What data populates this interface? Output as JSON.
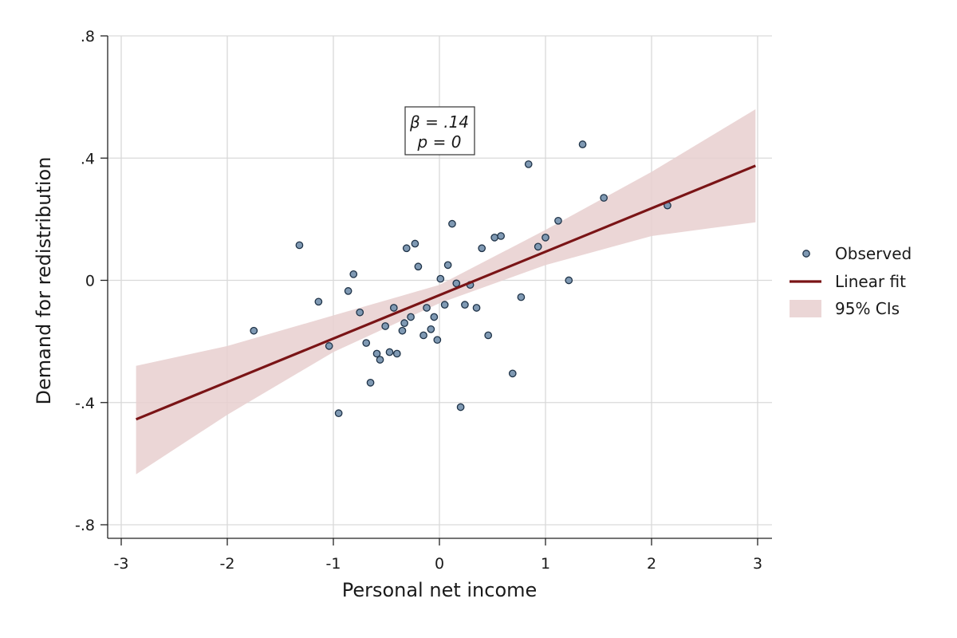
{
  "chart_data": {
    "type": "scatter",
    "title": "",
    "xlabel": "Personal net income",
    "ylabel": "Demand for redistribution",
    "xlim": [
      -3,
      3
    ],
    "ylim": [
      -0.8,
      0.8
    ],
    "xticks": [
      -3,
      -2,
      -1,
      0,
      1,
      2,
      3
    ],
    "xtick_labels": [
      "-3",
      "-2",
      "-1",
      "0",
      "1",
      "2",
      "3"
    ],
    "yticks": [
      -0.8,
      -0.4,
      0,
      0.4,
      0.8
    ],
    "ytick_labels": [
      "-.8",
      "-.4",
      "0",
      ".4",
      ".8"
    ],
    "grid": true,
    "legend_position": "right",
    "annotation": {
      "line1": "β = .14",
      "line2": "p = 0"
    },
    "series": [
      {
        "name": "Observed",
        "kind": "scatter",
        "color": "#7f99b3",
        "edge_color": "#1f3348",
        "points": [
          [
            -1.75,
            -0.165
          ],
          [
            -1.32,
            0.115
          ],
          [
            -1.14,
            -0.07
          ],
          [
            -1.04,
            -0.215
          ],
          [
            -0.95,
            -0.435
          ],
          [
            -0.86,
            -0.035
          ],
          [
            -0.81,
            0.02
          ],
          [
            -0.75,
            -0.105
          ],
          [
            -0.69,
            -0.205
          ],
          [
            -0.65,
            -0.335
          ],
          [
            -0.59,
            -0.24
          ],
          [
            -0.56,
            -0.26
          ],
          [
            -0.51,
            -0.15
          ],
          [
            -0.47,
            -0.235
          ],
          [
            -0.43,
            -0.09
          ],
          [
            -0.4,
            -0.24
          ],
          [
            -0.35,
            -0.165
          ],
          [
            -0.33,
            -0.14
          ],
          [
            -0.31,
            0.105
          ],
          [
            -0.27,
            -0.12
          ],
          [
            -0.23,
            0.12
          ],
          [
            -0.2,
            0.045
          ],
          [
            -0.15,
            -0.18
          ],
          [
            -0.12,
            -0.09
          ],
          [
            -0.08,
            -0.16
          ],
          [
            -0.05,
            -0.12
          ],
          [
            -0.02,
            -0.195
          ],
          [
            0.01,
            0.005
          ],
          [
            0.05,
            -0.08
          ],
          [
            0.08,
            0.05
          ],
          [
            0.12,
            0.185
          ],
          [
            0.16,
            -0.01
          ],
          [
            0.2,
            -0.415
          ],
          [
            0.24,
            -0.08
          ],
          [
            0.29,
            -0.015
          ],
          [
            0.35,
            -0.09
          ],
          [
            0.4,
            0.105
          ],
          [
            0.46,
            -0.18
          ],
          [
            0.52,
            0.14
          ],
          [
            0.58,
            0.145
          ],
          [
            0.69,
            -0.305
          ],
          [
            0.77,
            -0.055
          ],
          [
            0.84,
            0.38
          ],
          [
            0.93,
            0.11
          ],
          [
            1.0,
            0.14
          ],
          [
            1.12,
            0.195
          ],
          [
            1.22,
            0.0
          ],
          [
            1.35,
            0.445
          ],
          [
            1.55,
            0.27
          ],
          [
            2.15,
            0.245
          ]
        ]
      },
      {
        "name": "Linear fit",
        "kind": "line",
        "color": "#7a1416",
        "points": [
          [
            -2.86,
            -0.455
          ],
          [
            2.98,
            0.375
          ]
        ]
      },
      {
        "name": "95% CIs",
        "kind": "band",
        "color": "#e7cfcf",
        "x": [
          -2.86,
          -2.0,
          -1.0,
          0.0,
          1.0,
          2.0,
          2.98
        ],
        "lower": [
          -0.635,
          -0.44,
          -0.235,
          -0.075,
          0.05,
          0.145,
          0.19
        ],
        "upper": [
          -0.28,
          -0.215,
          -0.115,
          -0.015,
          0.165,
          0.355,
          0.56
        ]
      }
    ]
  }
}
